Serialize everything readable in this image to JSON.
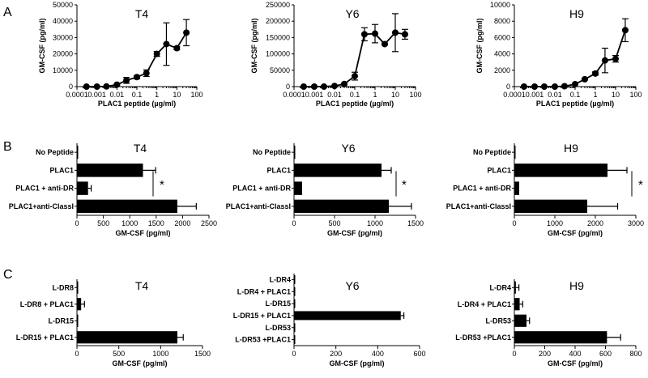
{
  "chart_data": [
    {
      "panel": "A",
      "type": "line",
      "title": "T4",
      "xlabel": "PLAC1 peptide (µg/ml)",
      "ylabel": "GM-CSF (pg/ml)",
      "xscale": "log",
      "xlim": [
        0.0001,
        100
      ],
      "ylim": [
        0,
        50000
      ],
      "xticks": [
        "0.0001",
        "0.001",
        "0.01",
        "0.1",
        "1",
        "10",
        "100"
      ],
      "yticks": [
        "0",
        "10000",
        "20000",
        "30000",
        "40000",
        "50000"
      ],
      "x": [
        0.0003,
        0.001,
        0.003,
        0.01,
        0.03,
        0.1,
        0.3,
        1,
        3,
        10,
        30
      ],
      "values": [
        0,
        0,
        100,
        1200,
        3800,
        5800,
        8200,
        20000,
        26000,
        23500,
        33000
      ],
      "errors": [
        0,
        0,
        0,
        200,
        1800,
        1000,
        2000,
        1500,
        13000,
        1000,
        8000
      ]
    },
    {
      "panel": "A",
      "type": "line",
      "title": "Y6",
      "xlabel": "PLAC1 peptide (µg/ml)",
      "ylabel": "GM-CSF (pg/ml)",
      "xscale": "log",
      "xlim": [
        0.0001,
        100
      ],
      "ylim": [
        0,
        250000
      ],
      "xticks": [
        "0.0001",
        "0.001",
        "0.01",
        "0.1",
        "1",
        "10",
        "100"
      ],
      "yticks": [
        "0",
        "50000",
        "100000",
        "150000",
        "200000",
        "250000"
      ],
      "x": [
        0.0003,
        0.001,
        0.003,
        0.01,
        0.03,
        0.1,
        0.3,
        1,
        3,
        10,
        30
      ],
      "values": [
        0,
        0,
        0,
        2000,
        8000,
        32000,
        160000,
        162000,
        130000,
        165000,
        160000
      ],
      "errors": [
        0,
        0,
        0,
        1000,
        3000,
        12000,
        20000,
        28000,
        3000,
        58000,
        15000
      ]
    },
    {
      "panel": "A",
      "type": "line",
      "title": "H9",
      "xlabel": "PLAC1 peptide (µg/ml)",
      "ylabel": "GM-CSF (pg/ml)",
      "xscale": "log",
      "xlim": [
        0.0001,
        100
      ],
      "ylim": [
        0,
        10000
      ],
      "xticks": [
        "0.0001",
        "0.001",
        "0.01",
        "0.1",
        "1",
        "10",
        "100"
      ],
      "yticks": [
        "0",
        "2000",
        "4000",
        "6000",
        "8000",
        "10000"
      ],
      "x": [
        0.0003,
        0.001,
        0.003,
        0.01,
        0.03,
        0.1,
        0.3,
        1,
        3,
        10,
        30
      ],
      "values": [
        0,
        0,
        0,
        0,
        50,
        300,
        900,
        1600,
        3200,
        3400,
        6900
      ],
      "errors": [
        0,
        0,
        0,
        0,
        0,
        50,
        100,
        200,
        1500,
        400,
        1400
      ]
    },
    {
      "panel": "B",
      "type": "bar",
      "orientation": "horizontal",
      "title": "T4",
      "xlabel": "GM-CSF (pg/ml)",
      "xlim": [
        0,
        2500
      ],
      "xticks": [
        "0",
        "500",
        "1000",
        "1500",
        "2000",
        "2500"
      ],
      "categories": [
        "No Peptide",
        "PLAC1",
        "PLAC1 + anti-DR",
        "PLAC1+anti-ClassI"
      ],
      "values": [
        10,
        1250,
        210,
        1900
      ],
      "errors": [
        0,
        240,
        60,
        360
      ],
      "annotation": "*"
    },
    {
      "panel": "B",
      "type": "bar",
      "orientation": "horizontal",
      "title": "Y6",
      "xlabel": "GM-CSF (pg/ml)",
      "xlim": [
        0,
        1500
      ],
      "xticks": [
        "0",
        "500",
        "1000",
        "1500"
      ],
      "categories": [
        "No Peptide",
        "PLAC1",
        "PLAC1 + anti-DR",
        "PLAC1+anti-ClassI"
      ],
      "values": [
        5,
        1080,
        100,
        1170
      ],
      "errors": [
        0,
        120,
        0,
        280
      ],
      "annotation": "*"
    },
    {
      "panel": "B",
      "type": "bar",
      "orientation": "horizontal",
      "title": "H9",
      "xlabel": "GM-CSF (pg/ml)",
      "xlim": [
        0,
        3000
      ],
      "xticks": [
        "0",
        "1000",
        "2000",
        "3000"
      ],
      "categories": [
        "No Peptide",
        "PLAC1",
        "PLAC1 + anti-DR",
        "PLAC1+anti-ClassI"
      ],
      "values": [
        5,
        2300,
        120,
        1800
      ],
      "errors": [
        0,
        480,
        0,
        750
      ],
      "annotation": "*"
    },
    {
      "panel": "C",
      "type": "bar",
      "orientation": "horizontal",
      "title": "T4",
      "xlabel": "GM-CSF (pg/ml)",
      "xlim": [
        0,
        1500
      ],
      "xticks": [
        "0",
        "500",
        "1000",
        "1500"
      ],
      "categories": [
        "L-DR8",
        "L-DR8 + PLAC1",
        "L-DR15",
        "L-DR15 + PLAC1"
      ],
      "values": [
        10,
        50,
        5,
        1200
      ],
      "errors": [
        0,
        40,
        0,
        70
      ]
    },
    {
      "panel": "C",
      "type": "bar",
      "orientation": "horizontal",
      "title": "Y6",
      "xlabel": "GM-CSF (pg/ml)",
      "xlim": [
        0,
        600
      ],
      "xticks": [
        "0",
        "200",
        "400",
        "600"
      ],
      "categories": [
        "L-DR4",
        "L-DR4 + PLAC1",
        "L-DR15",
        "L-DR15 + PLAC1",
        "L-DR53",
        "L-DR53 +PLAC1"
      ],
      "values": [
        2,
        2,
        2,
        510,
        2,
        2
      ],
      "errors": [
        0,
        0,
        0,
        15,
        0,
        0
      ]
    },
    {
      "panel": "C",
      "type": "bar",
      "orientation": "horizontal",
      "title": "H9",
      "xlabel": "GM-CSF (pg/ml)",
      "xlim": [
        0,
        800
      ],
      "xticks": [
        "0",
        "200",
        "400",
        "600",
        "800"
      ],
      "categories": [
        "L-DR4",
        "L-DR4 + PLAC1",
        "L-DR53",
        "L-DR53 +PLAC1"
      ],
      "values": [
        10,
        35,
        80,
        610
      ],
      "errors": [
        20,
        20,
        20,
        90
      ]
    }
  ],
  "panel_labels": [
    "A",
    "B",
    "C"
  ]
}
